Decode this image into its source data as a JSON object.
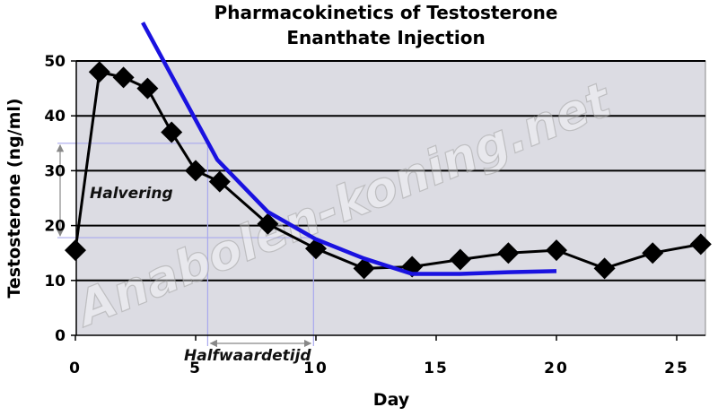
{
  "chart_data": {
    "type": "line",
    "title_line1": "Pharmacokinetics of Testosterone",
    "title_line2": "Enanthate Injection",
    "xlabel": "Day",
    "ylabel": "Testosterone (ng/ml)",
    "xlim": [
      0,
      26
    ],
    "ylim": [
      0,
      50
    ],
    "xticks": [
      0,
      5,
      10,
      15,
      20,
      25
    ],
    "yticks": [
      0,
      10,
      20,
      30,
      40,
      50
    ],
    "grid": "horizontal",
    "series": [
      {
        "x": [
          0,
          1,
          2,
          3,
          4,
          5,
          6,
          8,
          10,
          12,
          14,
          16,
          18,
          20,
          22,
          24,
          26
        ],
        "y": [
          15.5,
          48,
          47,
          45,
          37,
          30,
          28,
          20.3,
          15.8,
          12.2,
          12.5,
          13.8,
          15,
          15.5,
          12.2,
          15,
          16.6
        ],
        "color": "#000000",
        "marker": "diamond"
      },
      {
        "x": [
          2.8,
          5.9,
          8,
          10,
          12,
          14,
          16,
          18,
          20
        ],
        "y": [
          57,
          32,
          22.5,
          17.5,
          14,
          11.2,
          11.2,
          11.5,
          11.7
        ],
        "color": "#1a12e0",
        "marker": "none"
      }
    ],
    "annotations": {
      "halvering": "Halvering",
      "halfwaardetijd": "Halfwaardetijd",
      "halvering_y": [
        35,
        17.8
      ],
      "halfwaardetijd_x": [
        5.5,
        9.9
      ]
    },
    "watermark": "Anabolen-koning.net",
    "colors": {
      "plot_bg": "#dcdce3",
      "gridline": "#000000",
      "guide": "#a9a9ee",
      "arrow": "#888888"
    }
  }
}
